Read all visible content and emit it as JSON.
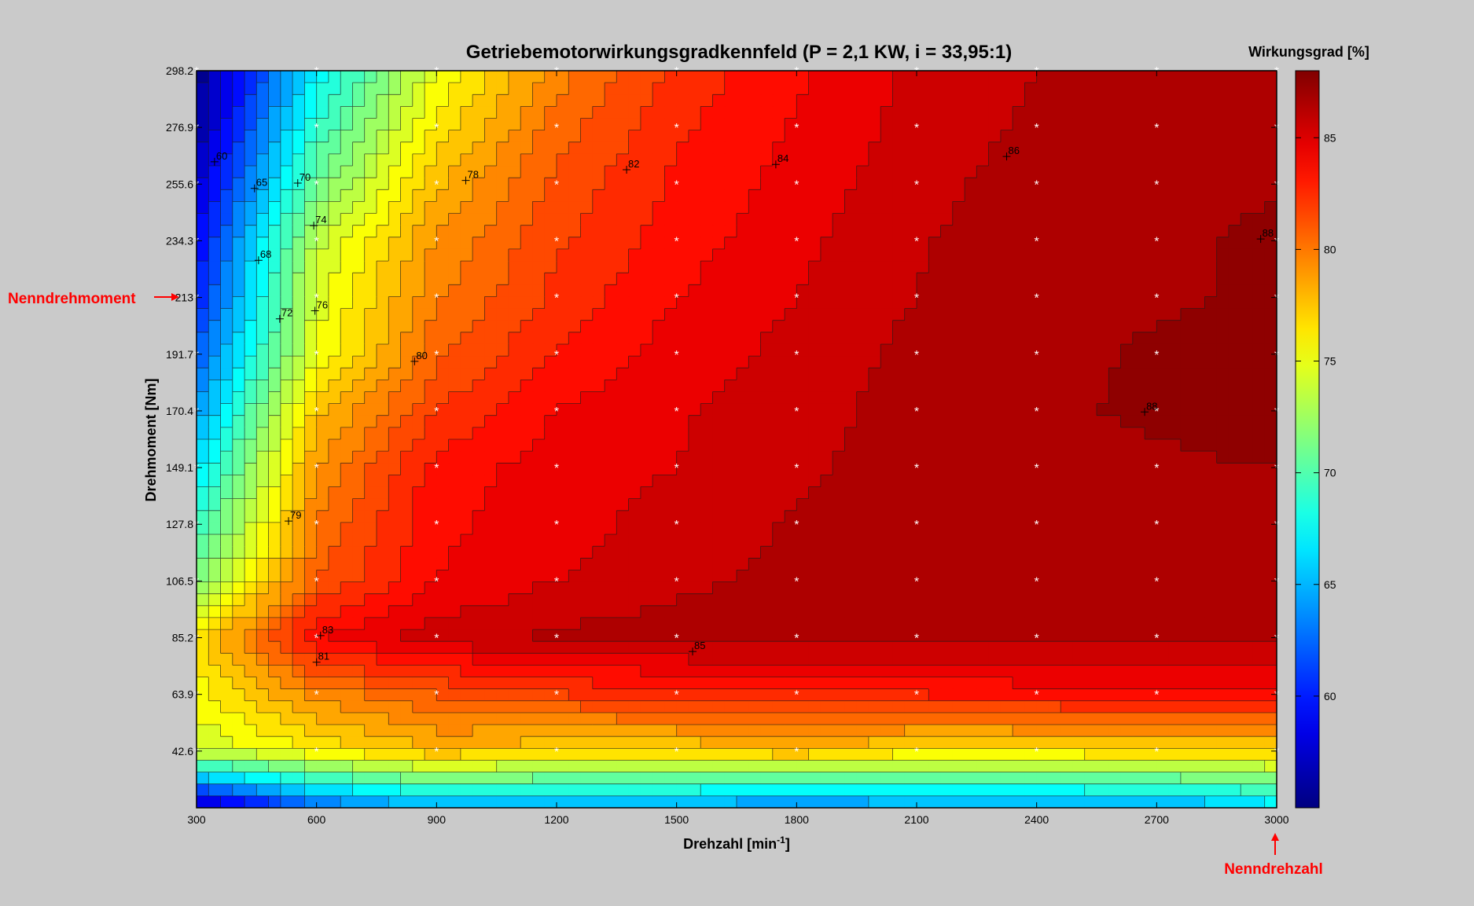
{
  "chart_data": {
    "type": "heatmap",
    "subtype": "filled-contour",
    "title": "Getriebemotorwirkungsgradkennfeld (P = 2,1 KW, i = 33,95:1)",
    "xlabel": "Drehzahl [min",
    "xlabel_sup": "-1",
    "xlabel_end": "]",
    "ylabel": "Drehmoment [Nm]",
    "colorbar_label": "Wirkungsgrad [%]",
    "x_ticks": [
      300,
      600,
      900,
      1200,
      1500,
      1800,
      2100,
      2400,
      2700,
      3000
    ],
    "y_ticks": [
      "42.6",
      "63.9",
      "85.2",
      "106.5",
      "127.8",
      "149.1",
      "170.4",
      "191.7",
      "213",
      "234.3",
      "255.6",
      "276.9",
      "298.2"
    ],
    "colorbar_ticks": [
      60,
      65,
      70,
      75,
      80,
      85
    ],
    "xlim": [
      300,
      3000
    ],
    "ylim": [
      21.3,
      298.2
    ],
    "clim": [
      55,
      88
    ],
    "colormap": "jet",
    "x_grid": [
      300,
      600,
      900,
      1200,
      1500,
      1800,
      2100,
      2400,
      2700,
      3000
    ],
    "y_grid": [
      21.3,
      42.6,
      63.9,
      85.2,
      106.5,
      127.8,
      149.1,
      170.4,
      191.7,
      213,
      234.3,
      255.6,
      276.9,
      298.2
    ],
    "z": [
      [
        56,
        62,
        64.5,
        64,
        64,
        63,
        64,
        64,
        64,
        66
      ],
      [
        74,
        76,
        78,
        77,
        77,
        78,
        76.5,
        76.5,
        77,
        77
      ],
      [
        75.5,
        79.5,
        81,
        82,
        82.5,
        83,
        83,
        83.5,
        83.5,
        83.5
      ],
      [
        76.5,
        84,
        85.5,
        86.2,
        86.5,
        86.5,
        86.4,
        86.4,
        86.3,
        86.1
      ],
      [
        71.5,
        81,
        84,
        85,
        85.8,
        86.2,
        86.6,
        86.7,
        86.8,
        86.8
      ],
      [
        69,
        80,
        83.8,
        84.5,
        85.5,
        86.1,
        86.5,
        86.7,
        86.8,
        86.9
      ],
      [
        66.5,
        79,
        83.5,
        84.5,
        85,
        85.8,
        86.5,
        86.8,
        86.9,
        87
      ],
      [
        64,
        77.5,
        82,
        84,
        84.9,
        85.5,
        86.5,
        86.9,
        87.1,
        87.3
      ],
      [
        62,
        75,
        80.8,
        83,
        84.5,
        85.3,
        86.3,
        86.8,
        87.1,
        87.4
      ],
      [
        60,
        74.5,
        79.8,
        82.3,
        84,
        85,
        86,
        86.7,
        86.9,
        87.1
      ],
      [
        59,
        73.6,
        79.2,
        81.8,
        83.5,
        84.7,
        85.9,
        86.6,
        86.8,
        87.2
      ],
      [
        57.5,
        71,
        77.8,
        81.3,
        83.2,
        84.4,
        85.7,
        86.4,
        86.7,
        86.9
      ],
      [
        56,
        69,
        76.3,
        80.5,
        82.8,
        84.1,
        85.4,
        86.2,
        86.6,
        86.7
      ],
      [
        55.2,
        67,
        75,
        79.5,
        82.3,
        83.8,
        85.2,
        86,
        86.5,
        86.6
      ]
    ],
    "contour_labels": [
      {
        "text": "60",
        "x": 345,
        "y": 264
      },
      {
        "text": "65",
        "x": 445,
        "y": 254
      },
      {
        "text": "70",
        "x": 553,
        "y": 256
      },
      {
        "text": "74",
        "x": 593,
        "y": 240
      },
      {
        "text": "68",
        "x": 455,
        "y": 227
      },
      {
        "text": "72",
        "x": 508,
        "y": 205
      },
      {
        "text": "76",
        "x": 596,
        "y": 208
      },
      {
        "text": "78",
        "x": 973,
        "y": 257
      },
      {
        "text": "82",
        "x": 1375,
        "y": 261
      },
      {
        "text": "84",
        "x": 1748,
        "y": 263
      },
      {
        "text": "86",
        "x": 2325,
        "y": 266
      },
      {
        "text": "88",
        "x": 2960,
        "y": 235
      },
      {
        "text": "80",
        "x": 845,
        "y": 189
      },
      {
        "text": "88",
        "x": 2670,
        "y": 170
      },
      {
        "text": "79",
        "x": 530,
        "y": 129
      },
      {
        "text": "83",
        "x": 610,
        "y": 86
      },
      {
        "text": "81",
        "x": 600,
        "y": 76
      },
      {
        "text": "85",
        "x": 1540,
        "y": 80
      }
    ]
  },
  "annotations": {
    "nenndrehmoment": "Nenndrehmoment",
    "nenndrehzahl": "Nenndrehzahl"
  }
}
